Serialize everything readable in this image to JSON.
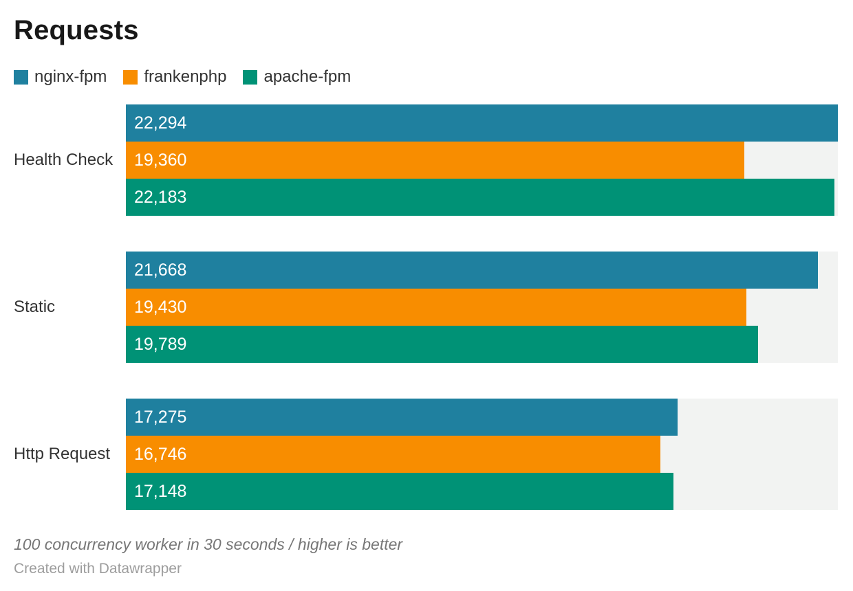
{
  "title": "Requests",
  "chart_data": {
    "type": "bar",
    "orientation": "horizontal",
    "title": "Requests",
    "categories": [
      "Health Check",
      "Static",
      "Http Request"
    ],
    "series": [
      {
        "name": "nginx-fpm",
        "color": "#1f809f",
        "values": [
          22294,
          21668,
          17275
        ],
        "labels": [
          "22,294",
          "21,668",
          "17,275"
        ]
      },
      {
        "name": "frankenphp",
        "color": "#f88d00",
        "values": [
          19360,
          19430,
          16746
        ],
        "labels": [
          "19,360",
          "19,430",
          "16,746"
        ]
      },
      {
        "name": "apache-fpm",
        "color": "#009276",
        "values": [
          22183,
          19789,
          17148
        ],
        "labels": [
          "22,183",
          "19,789",
          "17,148"
        ]
      }
    ],
    "xlim": [
      0,
      22294
    ],
    "grid": false,
    "legend_position": "top",
    "track_color": "#f2f3f2",
    "value_label_color": "#ffffff"
  },
  "footer": {
    "note": "100 concurrency worker in 30 seconds / higher is better",
    "attribution": "Created with Datawrapper"
  }
}
